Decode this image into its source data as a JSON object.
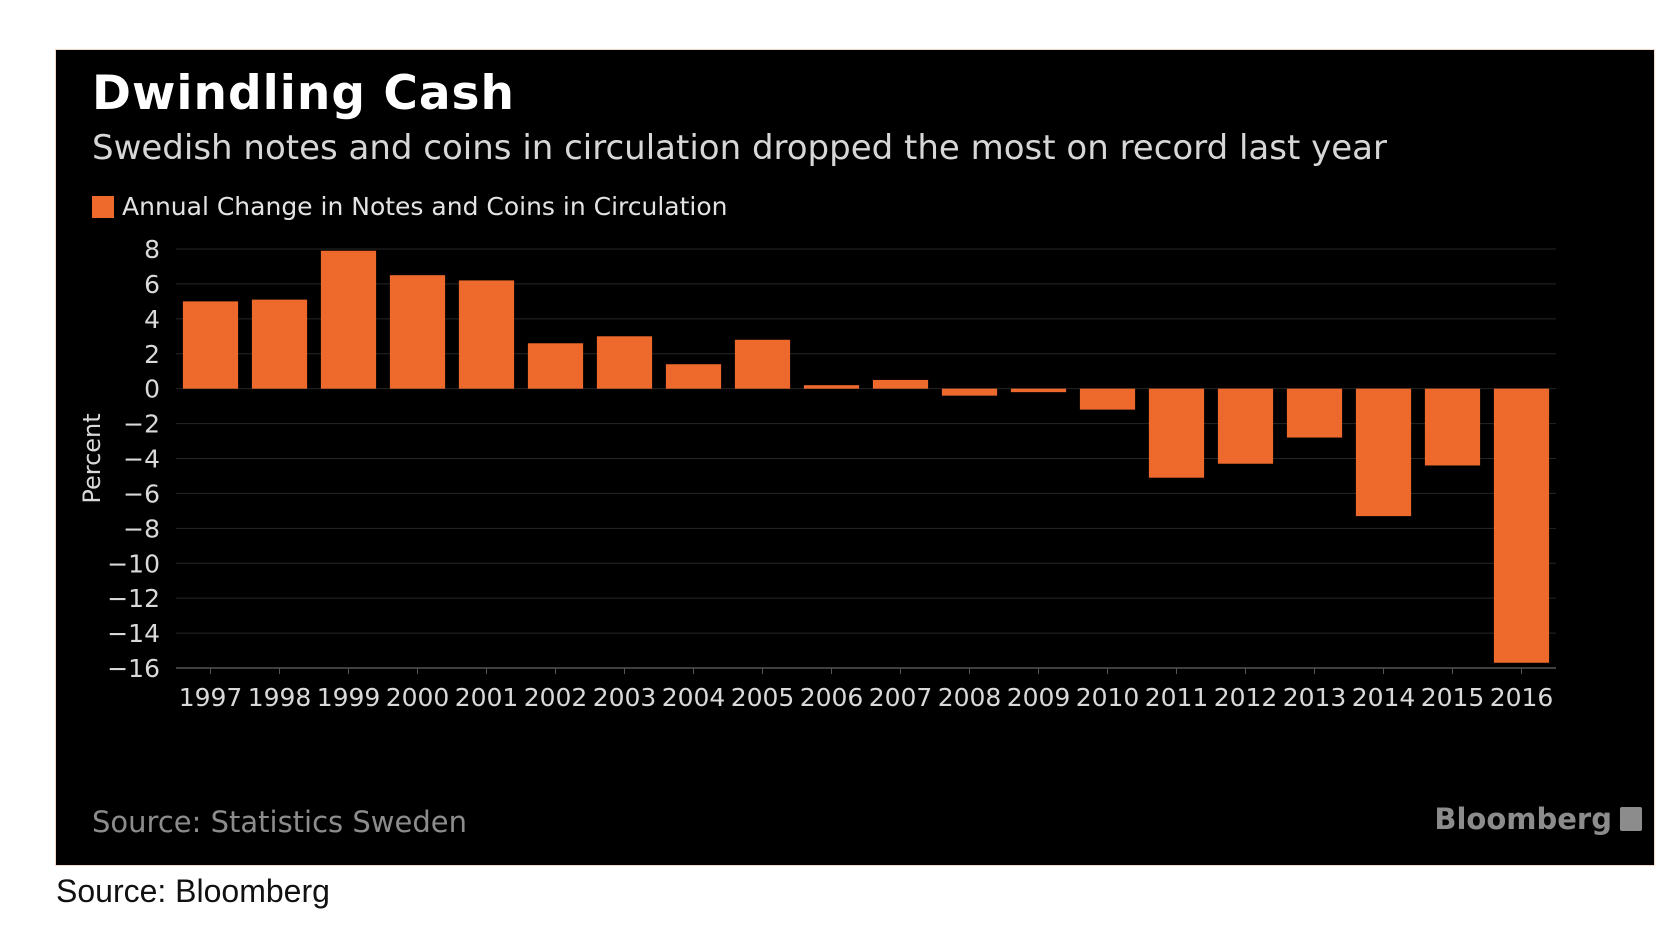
{
  "header": {
    "title": "Dwindling Cash",
    "subtitle": "Swedish notes and coins in circulation dropped the most on record last year"
  },
  "legend": {
    "label": "Annual Change in Notes and Coins in Circulation"
  },
  "source": "Source: Statistics Sweden",
  "brand": {
    "name": "Bloomberg",
    "icon": "bloomberg-terminal-icon"
  },
  "footer": "Source: Bloomberg",
  "colors": {
    "background": "#000000",
    "bar": "#ee6a2c",
    "grid": "#262626",
    "axis_text": "#d9d9d9"
  },
  "chart_data": {
    "type": "bar",
    "title": "Dwindling Cash",
    "subtitle": "Swedish notes and coins in circulation dropped the most on record last year",
    "xlabel": "",
    "ylabel": "Percent",
    "ylim": [
      -16,
      8
    ],
    "yticks": [
      8,
      6,
      4,
      2,
      0,
      -2,
      -4,
      -6,
      -8,
      -10,
      -12,
      -14,
      -16
    ],
    "grid": true,
    "legend_position": "top-left",
    "categories": [
      "1997",
      "1998",
      "1999",
      "2000",
      "2001",
      "2002",
      "2003",
      "2004",
      "2005",
      "2006",
      "2007",
      "2008",
      "2009",
      "2010",
      "2011",
      "2012",
      "2013",
      "2014",
      "2015",
      "2016"
    ],
    "series": [
      {
        "name": "Annual Change in Notes and Coins in Circulation",
        "values": [
          5.0,
          5.1,
          7.9,
          6.5,
          6.2,
          2.6,
          3.0,
          1.4,
          2.8,
          0.2,
          0.5,
          -0.4,
          -0.2,
          -1.2,
          -5.1,
          -4.3,
          -2.8,
          -7.3,
          -4.4,
          -15.7
        ]
      }
    ]
  }
}
